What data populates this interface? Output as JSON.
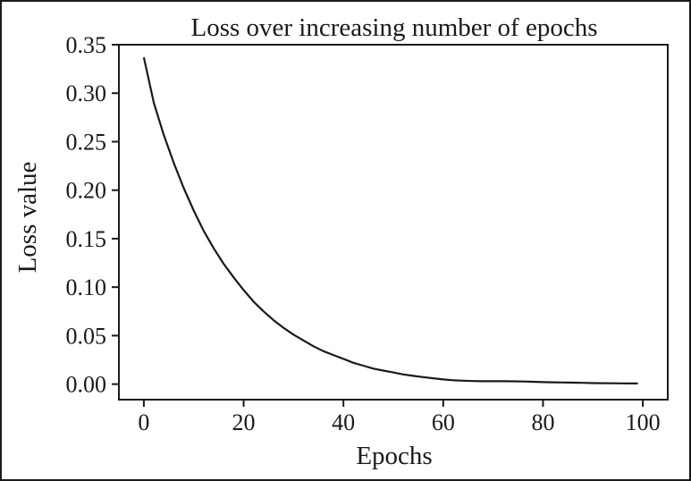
{
  "chart_data": {
    "type": "line",
    "title": "Loss over increasing number of epochs",
    "xlabel": "Epochs",
    "ylabel": "Loss value",
    "xlim": [
      -5,
      105
    ],
    "ylim": [
      -0.016,
      0.35
    ],
    "xticks": [
      0,
      20,
      40,
      60,
      80,
      100
    ],
    "yticks": [
      0.0,
      0.05,
      0.1,
      0.15,
      0.2,
      0.25,
      0.3,
      0.35
    ],
    "xtick_labels": [
      "0",
      "20",
      "40",
      "60",
      "80",
      "100"
    ],
    "ytick_labels": [
      "0.00",
      "0.05",
      "0.10",
      "0.15",
      "0.20",
      "0.25",
      "0.30",
      "0.35"
    ],
    "grid": false,
    "legend": "none",
    "series": [
      {
        "color": "#1a1a1a",
        "x": [
          0,
          2,
          4,
          6,
          8,
          10,
          12,
          14,
          16,
          18,
          20,
          22,
          24,
          26,
          28,
          30,
          32,
          34,
          36,
          38,
          40,
          42,
          44,
          46,
          48,
          50,
          52,
          54,
          56,
          58,
          60,
          62,
          64,
          66,
          68,
          70,
          72,
          74,
          76,
          78,
          80,
          82,
          84,
          86,
          88,
          90,
          92,
          94,
          96,
          98,
          99
        ],
        "y": [
          0.337,
          0.29,
          0.257,
          0.228,
          0.202,
          0.179,
          0.158,
          0.14,
          0.124,
          0.11,
          0.097,
          0.085,
          0.075,
          0.066,
          0.058,
          0.051,
          0.045,
          0.039,
          0.034,
          0.03,
          0.026,
          0.022,
          0.019,
          0.016,
          0.014,
          0.012,
          0.01,
          0.0085,
          0.0072,
          0.006,
          0.0048,
          0.004,
          0.0035,
          0.0032,
          0.003,
          0.003,
          0.003,
          0.0029,
          0.0027,
          0.0024,
          0.0021,
          0.0019,
          0.0017,
          0.0015,
          0.0013,
          0.0011,
          0.001,
          0.0009,
          0.0008,
          0.0007,
          0.0007
        ]
      }
    ]
  }
}
